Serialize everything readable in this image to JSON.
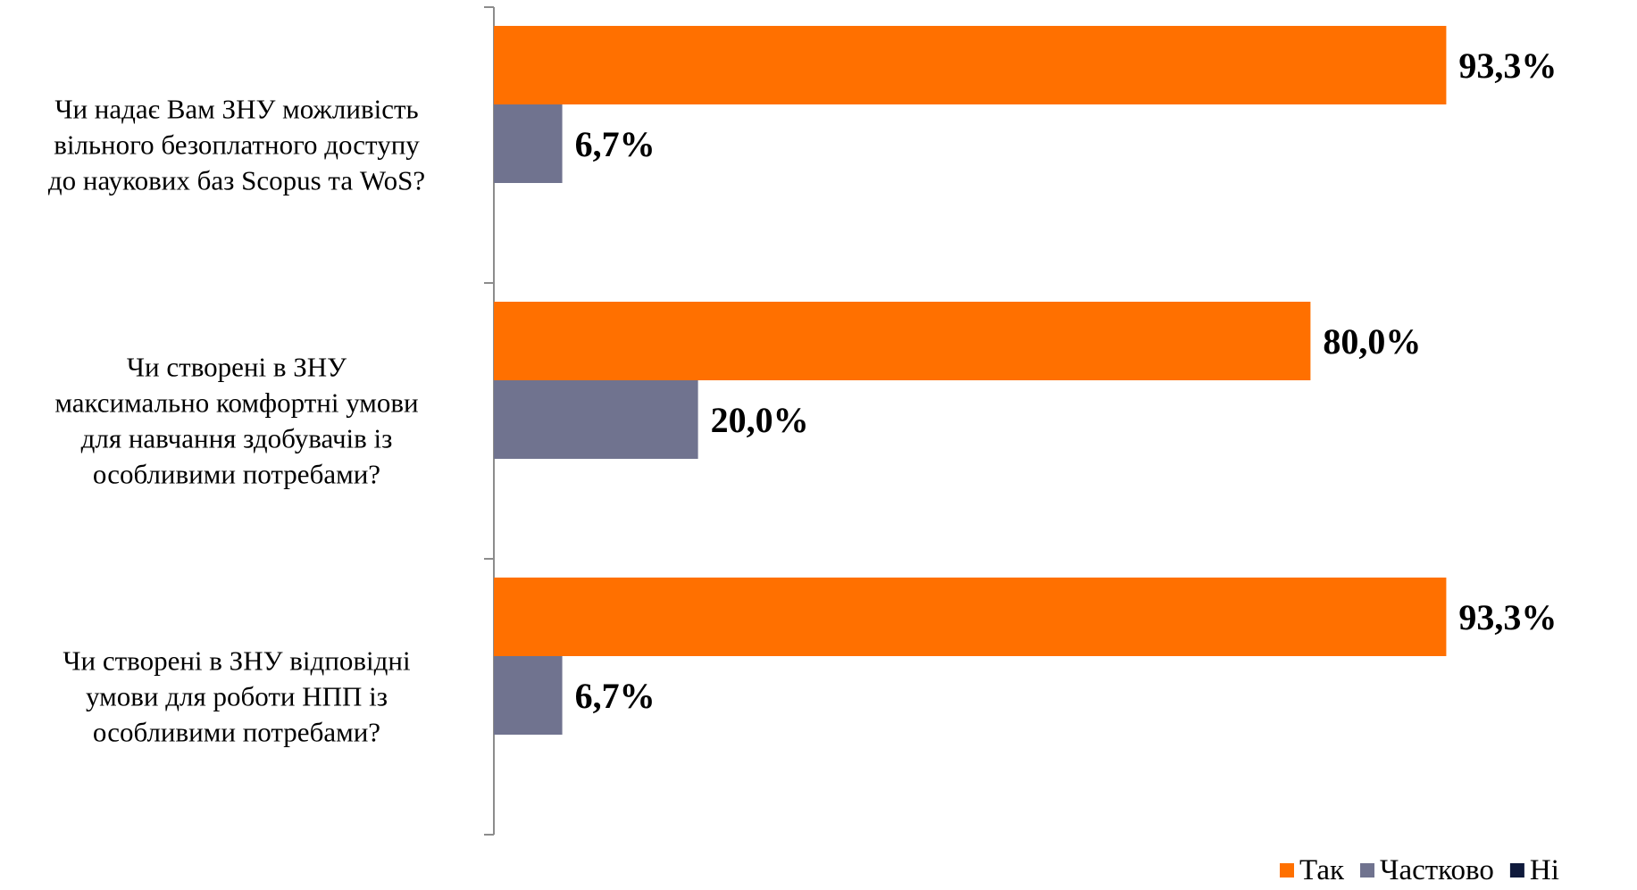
{
  "chart_data": {
    "type": "bar",
    "orientation": "horizontal",
    "categories": [
      [
        "Чи надає Вам ЗНУ можливість",
        "вільного безоплатного доступу",
        "до наукових баз Scopus та WoS?"
      ],
      [
        "Чи створені в ЗНУ",
        "максимально комфортні умови",
        "для навчання здобувачів із",
        "особливими потребами?"
      ],
      [
        "Чи створені в ЗНУ відповідні",
        "умови для роботи НПП із",
        "особливими потребами?"
      ]
    ],
    "series": [
      {
        "name": "Так",
        "color": "#FF7000",
        "values": [
          93.3,
          80.0,
          93.3
        ],
        "labels": [
          "93,3%",
          "80,0%",
          "93,3%"
        ]
      },
      {
        "name": "Частково",
        "color": "#70738F",
        "values": [
          6.7,
          20.0,
          6.7
        ],
        "labels": [
          "6,7%",
          "20,0%",
          "6,7%"
        ]
      },
      {
        "name": "Ні",
        "color": "#0F1A3C",
        "values": [
          0,
          0,
          0
        ],
        "labels": [
          "",
          "",
          ""
        ]
      }
    ],
    "xlim": [
      0,
      100
    ],
    "grid": false,
    "legend": "bottom-right"
  }
}
